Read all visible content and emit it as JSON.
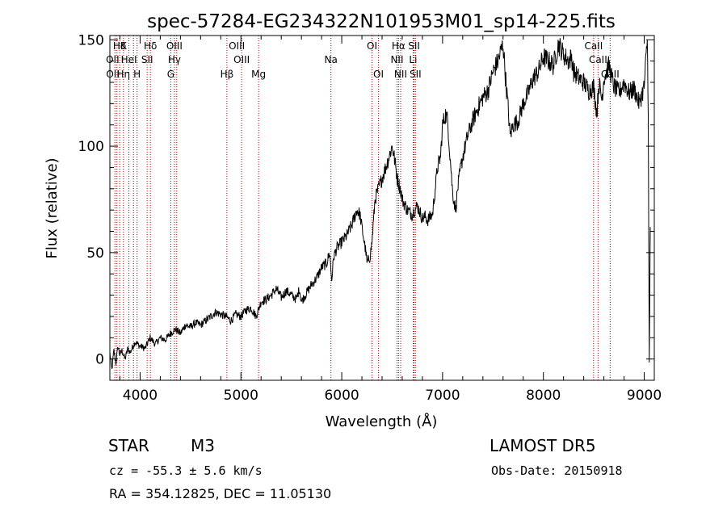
{
  "chart_data": {
    "type": "line",
    "title": "spec-57284-EG234322N101953M01_sp14-225.fits",
    "xlabel": "Wavelength (Å)",
    "ylabel": "Flux (relative)",
    "xlim": [
      3700,
      9100
    ],
    "ylim": [
      -10,
      152
    ],
    "xticks": [
      4000,
      5000,
      6000,
      7000,
      8000,
      9000
    ],
    "yticks": [
      0,
      50,
      100,
      150
    ],
    "grid": false,
    "line_color": "#000000",
    "marker_color": "#aa0000",
    "series": [
      {
        "x": [
          3700,
          3720,
          3740,
          3760,
          3780,
          3800,
          3820,
          3850,
          3880,
          3900,
          3950,
          4000,
          4050,
          4100,
          4150,
          4200,
          4250,
          4300,
          4350,
          4400,
          4450,
          4500,
          4550,
          4600,
          4650,
          4700,
          4750,
          4800,
          4850,
          4900,
          4950,
          5000,
          5050,
          5100,
          5150,
          5180,
          5200,
          5250,
          5300,
          5350,
          5400,
          5450,
          5500,
          5550,
          5580,
          5600,
          5650,
          5700,
          5750,
          5800,
          5850,
          5880,
          5900,
          5920,
          5950,
          6000,
          6050,
          6100,
          6150,
          6180,
          6200,
          6240,
          6250,
          6280,
          6300,
          6330,
          6350,
          6400,
          6450,
          6500,
          6520,
          6550,
          6580,
          6600,
          6650,
          6700,
          6720,
          6750,
          6800,
          6830,
          6850,
          6880,
          6900,
          6950,
          6980,
          7000,
          7030,
          7050,
          7100,
          7130,
          7150,
          7180,
          7200,
          7250,
          7300,
          7350,
          7400,
          7450,
          7500,
          7550,
          7580,
          7600,
          7620,
          7650,
          7670,
          7700,
          7750,
          7800,
          7850,
          7900,
          7950,
          8000,
          8050,
          8100,
          8150,
          8200,
          8250,
          8280,
          8300,
          8350,
          8400,
          8450,
          8500,
          8530,
          8550,
          8580,
          8600,
          8650,
          8700,
          8750,
          8800,
          8850,
          8900,
          8950,
          9000,
          9030,
          9040,
          9050,
          9060
        ],
        "y": [
          3,
          -5,
          4,
          -2,
          6,
          2,
          4,
          0,
          5,
          3,
          8,
          6,
          5,
          10,
          7,
          10,
          9,
          12,
          14,
          12,
          16,
          15,
          17,
          16,
          18,
          20,
          22,
          21,
          20,
          18,
          21,
          20,
          23,
          24,
          20,
          24,
          27,
          28,
          30,
          33,
          29,
          32,
          30,
          28,
          33,
          27,
          31,
          35,
          38,
          43,
          45,
          50,
          37,
          48,
          52,
          55,
          58,
          63,
          70,
          68,
          62,
          50,
          45,
          48,
          55,
          75,
          78,
          85,
          92,
          100,
          95,
          85,
          80,
          75,
          70,
          68,
          70,
          72,
          66,
          67,
          65,
          67,
          68,
          90,
          95,
          110,
          115,
          112,
          78,
          70,
          80,
          90,
          95,
          105,
          112,
          118,
          123,
          126,
          135,
          140,
          145,
          148,
          135,
          118,
          105,
          110,
          112,
          120,
          125,
          132,
          135,
          142,
          140,
          138,
          148,
          143,
          140,
          142,
          135,
          132,
          130,
          126,
          128,
          115,
          130,
          122,
          132,
          138,
          128,
          125,
          130,
          125,
          127,
          120,
          128,
          150,
          118,
          -2,
          62
        ]
      }
    ],
    "lines": {
      "row1": [
        {
          "x": 3797,
          "label": "Hδ"
        },
        {
          "x": 3835,
          "label": "K"
        },
        {
          "x": 4102,
          "label": "Hδ"
        },
        {
          "x": 4340,
          "label": "OIII"
        },
        {
          "x": 4959,
          "label": "OIII"
        },
        {
          "x": 6300,
          "label": "OI"
        },
        {
          "x": 6563,
          "label": "Hα"
        },
        {
          "x": 6717,
          "label": "SII"
        },
        {
          "x": 8498,
          "label": "CaII"
        }
      ],
      "row2": [
        {
          "x": 3727,
          "label": "OII"
        },
        {
          "x": 3889,
          "label": "HeI"
        },
        {
          "x": 4070,
          "label": "SII"
        },
        {
          "x": 4340,
          "label": "Hγ"
        },
        {
          "x": 5007,
          "label": "OIII"
        },
        {
          "x": 5893,
          "label": "Na"
        },
        {
          "x": 6548,
          "label": "NII"
        },
        {
          "x": 6708,
          "label": "Li"
        },
        {
          "x": 8542,
          "label": "CaII"
        }
      ],
      "row3": [
        {
          "x": 3729,
          "label": "OII"
        },
        {
          "x": 3835,
          "label": "Hη"
        },
        {
          "x": 3970,
          "label": "H"
        },
        {
          "x": 4304,
          "label": "G"
        },
        {
          "x": 4861,
          "label": "Hβ"
        },
        {
          "x": 5175,
          "label": "Mg"
        },
        {
          "x": 6364,
          "label": "OI"
        },
        {
          "x": 6584,
          "label": "NII"
        },
        {
          "x": 6731,
          "label": "SII"
        },
        {
          "x": 8662,
          "label": "CaII"
        }
      ],
      "markers": [
        3750,
        3770,
        3797,
        3835,
        3889,
        3934,
        3970,
        4070,
        4102,
        4304,
        4340,
        4363,
        4861,
        5007,
        5175,
        5893,
        6300,
        6364,
        6548,
        6563,
        6584,
        6708,
        6717,
        6731,
        8498,
        8542,
        8662
      ]
    }
  },
  "info": {
    "object_type": "STAR",
    "subclass": "M3",
    "survey": "LAMOST DR5",
    "velocity": "cz = -55.3 ± 5.6 km/s",
    "obs_date": "Obs-Date: 20150918",
    "coords": "RA = 354.12825, DEC =  11.05130"
  }
}
